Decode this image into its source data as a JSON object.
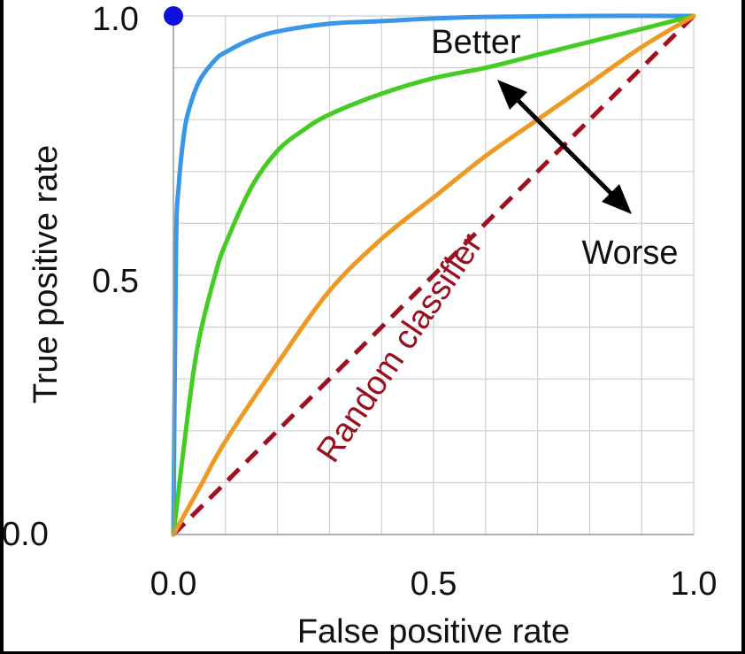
{
  "chart_data": {
    "type": "line",
    "xlabel": "False positive rate",
    "ylabel": "True positive rate",
    "xlim": [
      0,
      1
    ],
    "ylim": [
      0,
      1
    ],
    "xticks": [
      "0.0",
      "0.5",
      "1.0"
    ],
    "yticks": [
      "0.0",
      "0.5",
      "1.0"
    ],
    "grid": true,
    "annotations": {
      "better": "Better",
      "worse": "Worse",
      "random": "Random classifier"
    },
    "point": {
      "x": 0.0,
      "y": 1.0,
      "color": "#1010dd"
    },
    "series": [
      {
        "color": "#3a96e8",
        "x": [
          0,
          0.005,
          0.01,
          0.02,
          0.03,
          0.05,
          0.08,
          0.1,
          0.15,
          0.2,
          0.3,
          0.4,
          0.5,
          0.6,
          0.8,
          1.0
        ],
        "y": [
          0,
          0.55,
          0.67,
          0.77,
          0.82,
          0.875,
          0.915,
          0.93,
          0.955,
          0.97,
          0.985,
          0.99,
          0.995,
          0.998,
          1.0,
          1.0
        ]
      },
      {
        "color": "#44cc22",
        "x": [
          0,
          0.03,
          0.05,
          0.08,
          0.1,
          0.15,
          0.2,
          0.25,
          0.3,
          0.4,
          0.5,
          0.6,
          0.7,
          0.8,
          0.9,
          1.0
        ],
        "y": [
          0,
          0.25,
          0.38,
          0.5,
          0.56,
          0.67,
          0.74,
          0.78,
          0.81,
          0.85,
          0.88,
          0.9,
          0.925,
          0.95,
          0.975,
          1.0
        ]
      },
      {
        "color": "#ee9922",
        "x": [
          0,
          0.05,
          0.1,
          0.2,
          0.3,
          0.4,
          0.5,
          0.6,
          0.7,
          0.8,
          0.9,
          1.0
        ],
        "y": [
          0,
          0.09,
          0.18,
          0.33,
          0.47,
          0.57,
          0.65,
          0.73,
          0.8,
          0.87,
          0.94,
          1.0
        ]
      },
      {
        "color": "#a01020",
        "dashed": true,
        "x": [
          0,
          1
        ],
        "y": [
          0,
          1
        ]
      }
    ]
  }
}
